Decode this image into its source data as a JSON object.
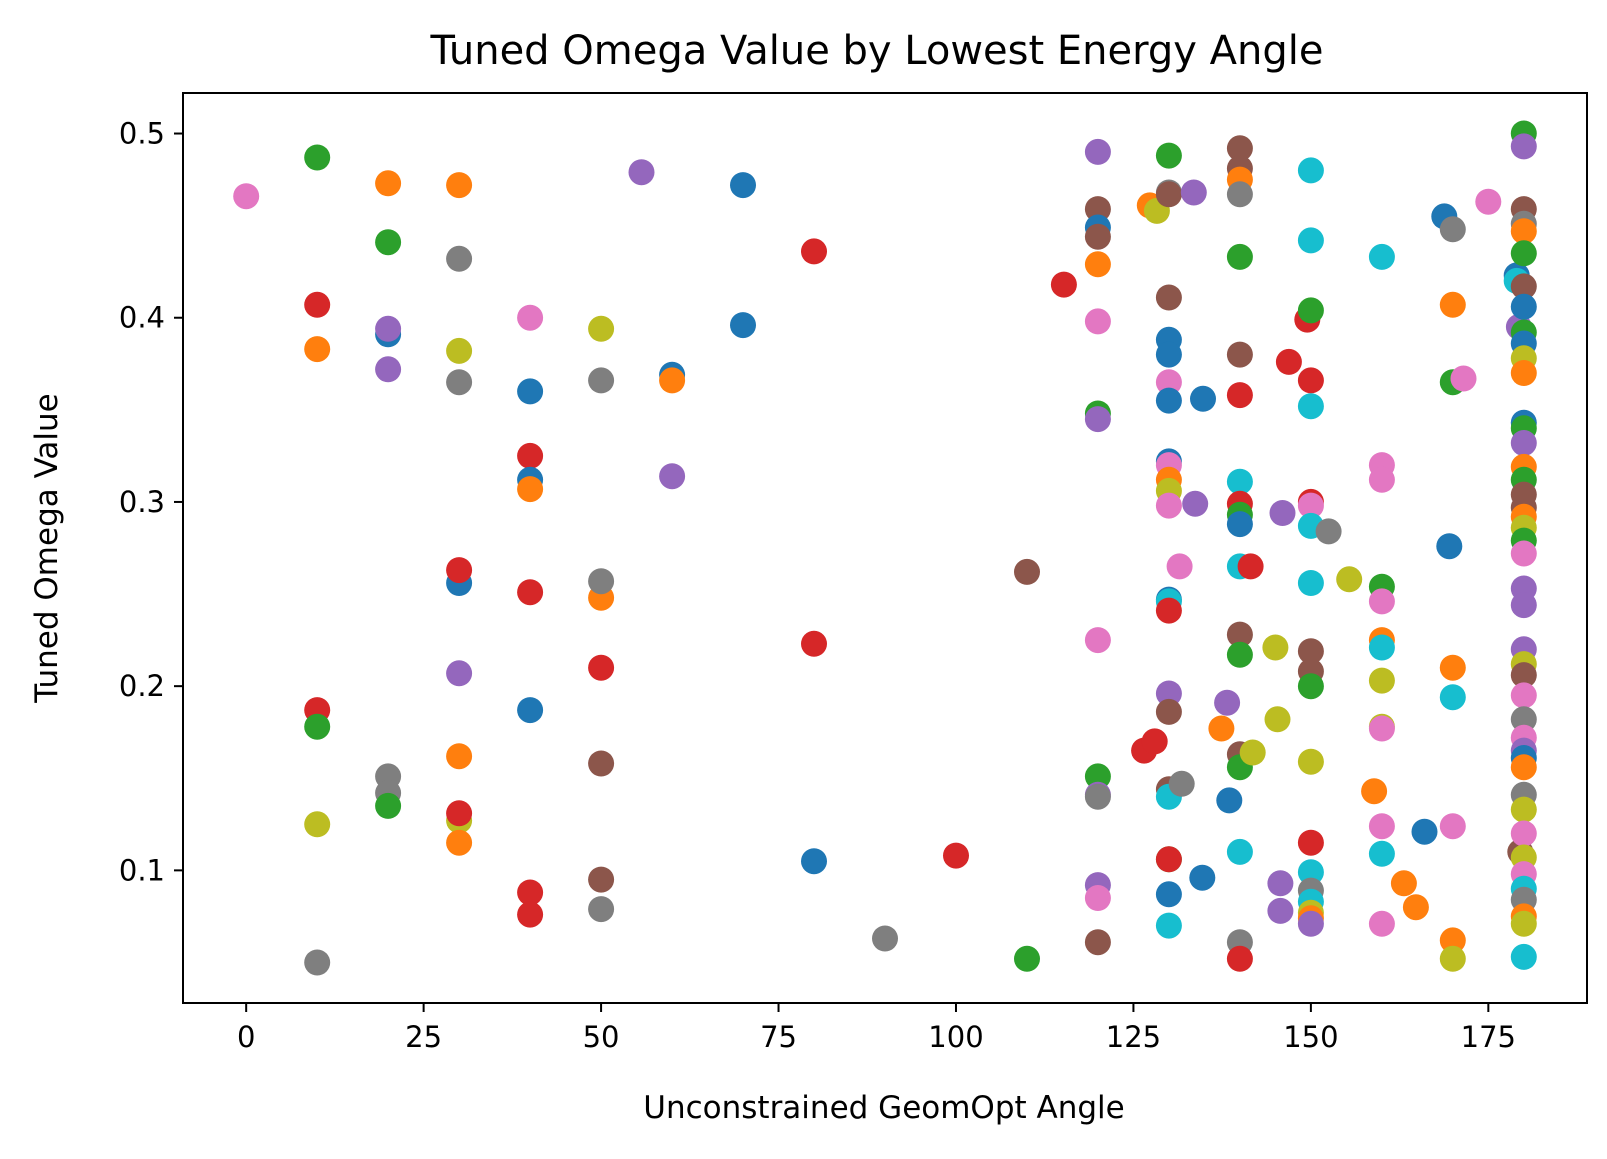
{
  "chart_data": {
    "type": "scatter",
    "title": "Tuned Omega Value by Lowest Energy Angle",
    "xlabel": "Unconstrained GeomOpt Angle",
    "ylabel": "Tuned Omega Value",
    "xlim": [
      -8.9,
      188.9
    ],
    "ylim": [
      0.028,
      0.522
    ],
    "xticks": [
      0,
      25,
      50,
      75,
      100,
      125,
      150,
      175
    ],
    "yticks": [
      0.1,
      0.2,
      0.3,
      0.4,
      0.5
    ],
    "xtick_labels": [
      "0",
      "25",
      "50",
      "75",
      "100",
      "125",
      "150",
      "175"
    ],
    "ytick_labels": [
      "0.1",
      "0.2",
      "0.3",
      "0.4",
      "0.5"
    ],
    "grid": false,
    "legend": "none",
    "colors": {
      "blue": "#1f77b4",
      "orange": "#ff7f0e",
      "green": "#2ca02c",
      "red": "#d62728",
      "purple": "#9467bd",
      "brown": "#8c564b",
      "pink": "#e377c2",
      "gray": "#7f7f7f",
      "olive": "#bcbd22",
      "cyan": "#17becf"
    },
    "points": [
      {
        "x": 0,
        "y": 0.466,
        "c": "pink"
      },
      {
        "x": 10,
        "y": 0.487,
        "c": "green"
      },
      {
        "x": 10,
        "y": 0.407,
        "c": "red"
      },
      {
        "x": 10,
        "y": 0.383,
        "c": "orange"
      },
      {
        "x": 10,
        "y": 0.187,
        "c": "red"
      },
      {
        "x": 10,
        "y": 0.178,
        "c": "green"
      },
      {
        "x": 10,
        "y": 0.125,
        "c": "olive"
      },
      {
        "x": 10,
        "y": 0.05,
        "c": "gray"
      },
      {
        "x": 20,
        "y": 0.473,
        "c": "orange"
      },
      {
        "x": 20,
        "y": 0.441,
        "c": "green"
      },
      {
        "x": 20,
        "y": 0.391,
        "c": "blue"
      },
      {
        "x": 20,
        "y": 0.394,
        "c": "purple"
      },
      {
        "x": 20,
        "y": 0.372,
        "c": "purple"
      },
      {
        "x": 20,
        "y": 0.151,
        "c": "gray"
      },
      {
        "x": 20,
        "y": 0.142,
        "c": "gray"
      },
      {
        "x": 20,
        "y": 0.135,
        "c": "green"
      },
      {
        "x": 30,
        "y": 0.472,
        "c": "orange"
      },
      {
        "x": 30,
        "y": 0.432,
        "c": "gray"
      },
      {
        "x": 30,
        "y": 0.382,
        "c": "olive"
      },
      {
        "x": 30,
        "y": 0.365,
        "c": "gray"
      },
      {
        "x": 30,
        "y": 0.256,
        "c": "blue"
      },
      {
        "x": 30,
        "y": 0.263,
        "c": "red"
      },
      {
        "x": 30,
        "y": 0.207,
        "c": "purple"
      },
      {
        "x": 30,
        "y": 0.162,
        "c": "orange"
      },
      {
        "x": 30,
        "y": 0.127,
        "c": "olive"
      },
      {
        "x": 30,
        "y": 0.131,
        "c": "red"
      },
      {
        "x": 30,
        "y": 0.115,
        "c": "orange"
      },
      {
        "x": 40,
        "y": 0.4,
        "c": "pink"
      },
      {
        "x": 40,
        "y": 0.36,
        "c": "blue"
      },
      {
        "x": 40,
        "y": 0.325,
        "c": "red"
      },
      {
        "x": 40,
        "y": 0.312,
        "c": "blue"
      },
      {
        "x": 40,
        "y": 0.307,
        "c": "orange"
      },
      {
        "x": 40,
        "y": 0.251,
        "c": "red"
      },
      {
        "x": 40,
        "y": 0.187,
        "c": "blue"
      },
      {
        "x": 40,
        "y": 0.088,
        "c": "red"
      },
      {
        "x": 40,
        "y": 0.076,
        "c": "red"
      },
      {
        "x": 50,
        "y": 0.394,
        "c": "olive"
      },
      {
        "x": 50,
        "y": 0.366,
        "c": "gray"
      },
      {
        "x": 50,
        "y": 0.248,
        "c": "orange"
      },
      {
        "x": 50,
        "y": 0.257,
        "c": "gray"
      },
      {
        "x": 50,
        "y": 0.21,
        "c": "red"
      },
      {
        "x": 50,
        "y": 0.158,
        "c": "brown"
      },
      {
        "x": 50,
        "y": 0.095,
        "c": "brown"
      },
      {
        "x": 50,
        "y": 0.079,
        "c": "gray"
      },
      {
        "x": 55.7,
        "y": 0.479,
        "c": "purple"
      },
      {
        "x": 60,
        "y": 0.369,
        "c": "blue"
      },
      {
        "x": 60,
        "y": 0.366,
        "c": "orange"
      },
      {
        "x": 60,
        "y": 0.314,
        "c": "purple"
      },
      {
        "x": 70,
        "y": 0.472,
        "c": "blue"
      },
      {
        "x": 70,
        "y": 0.396,
        "c": "blue"
      },
      {
        "x": 80,
        "y": 0.436,
        "c": "red"
      },
      {
        "x": 80,
        "y": 0.223,
        "c": "red"
      },
      {
        "x": 80,
        "y": 0.105,
        "c": "blue"
      },
      {
        "x": 90,
        "y": 0.063,
        "c": "gray"
      },
      {
        "x": 100,
        "y": 0.108,
        "c": "red"
      },
      {
        "x": 110,
        "y": 0.262,
        "c": "brown"
      },
      {
        "x": 110,
        "y": 0.052,
        "c": "green"
      },
      {
        "x": 115.2,
        "y": 0.418,
        "c": "red"
      },
      {
        "x": 120,
        "y": 0.49,
        "c": "purple"
      },
      {
        "x": 120,
        "y": 0.459,
        "c": "brown"
      },
      {
        "x": 120,
        "y": 0.449,
        "c": "blue"
      },
      {
        "x": 120,
        "y": 0.444,
        "c": "brown"
      },
      {
        "x": 120,
        "y": 0.429,
        "c": "orange"
      },
      {
        "x": 120,
        "y": 0.398,
        "c": "pink"
      },
      {
        "x": 120,
        "y": 0.348,
        "c": "green"
      },
      {
        "x": 120,
        "y": 0.345,
        "c": "purple"
      },
      {
        "x": 120,
        "y": 0.225,
        "c": "pink"
      },
      {
        "x": 120,
        "y": 0.151,
        "c": "green"
      },
      {
        "x": 120,
        "y": 0.141,
        "c": "purple"
      },
      {
        "x": 120,
        "y": 0.14,
        "c": "gray"
      },
      {
        "x": 120,
        "y": 0.092,
        "c": "purple"
      },
      {
        "x": 120,
        "y": 0.085,
        "c": "pink"
      },
      {
        "x": 120,
        "y": 0.061,
        "c": "brown"
      },
      {
        "x": 126.5,
        "y": 0.165,
        "c": "red"
      },
      {
        "x": 127.3,
        "y": 0.461,
        "c": "orange"
      },
      {
        "x": 128,
        "y": 0.17,
        "c": "red"
      },
      {
        "x": 128.3,
        "y": 0.458,
        "c": "olive"
      },
      {
        "x": 130,
        "y": 0.488,
        "c": "green"
      },
      {
        "x": 130,
        "y": 0.468,
        "c": "gray"
      },
      {
        "x": 130,
        "y": 0.467,
        "c": "brown"
      },
      {
        "x": 130,
        "y": 0.411,
        "c": "brown"
      },
      {
        "x": 130,
        "y": 0.388,
        "c": "blue"
      },
      {
        "x": 130,
        "y": 0.38,
        "c": "blue"
      },
      {
        "x": 130,
        "y": 0.365,
        "c": "pink"
      },
      {
        "x": 130,
        "y": 0.355,
        "c": "blue"
      },
      {
        "x": 130,
        "y": 0.322,
        "c": "blue"
      },
      {
        "x": 130,
        "y": 0.32,
        "c": "pink"
      },
      {
        "x": 130,
        "y": 0.312,
        "c": "orange"
      },
      {
        "x": 130,
        "y": 0.306,
        "c": "olive"
      },
      {
        "x": 130,
        "y": 0.298,
        "c": "pink"
      },
      {
        "x": 130,
        "y": 0.247,
        "c": "blue"
      },
      {
        "x": 130,
        "y": 0.246,
        "c": "cyan"
      },
      {
        "x": 130,
        "y": 0.241,
        "c": "red"
      },
      {
        "x": 130,
        "y": 0.196,
        "c": "purple"
      },
      {
        "x": 130,
        "y": 0.186,
        "c": "brown"
      },
      {
        "x": 130,
        "y": 0.144,
        "c": "brown"
      },
      {
        "x": 130,
        "y": 0.14,
        "c": "cyan"
      },
      {
        "x": 130,
        "y": 0.106,
        "c": "green"
      },
      {
        "x": 130,
        "y": 0.106,
        "c": "red"
      },
      {
        "x": 130,
        "y": 0.087,
        "c": "blue"
      },
      {
        "x": 130,
        "y": 0.07,
        "c": "cyan"
      },
      {
        "x": 131.5,
        "y": 0.265,
        "c": "pink"
      },
      {
        "x": 131.8,
        "y": 0.147,
        "c": "gray"
      },
      {
        "x": 133.5,
        "y": 0.468,
        "c": "purple"
      },
      {
        "x": 133.7,
        "y": 0.299,
        "c": "purple"
      },
      {
        "x": 134.8,
        "y": 0.356,
        "c": "blue"
      },
      {
        "x": 134.7,
        "y": 0.096,
        "c": "blue"
      },
      {
        "x": 137.4,
        "y": 0.177,
        "c": "orange"
      },
      {
        "x": 138.2,
        "y": 0.191,
        "c": "purple"
      },
      {
        "x": 138.5,
        "y": 0.138,
        "c": "blue"
      },
      {
        "x": 140,
        "y": 0.492,
        "c": "brown"
      },
      {
        "x": 140,
        "y": 0.481,
        "c": "brown"
      },
      {
        "x": 140,
        "y": 0.475,
        "c": "orange"
      },
      {
        "x": 140,
        "y": 0.467,
        "c": "gray"
      },
      {
        "x": 140,
        "y": 0.433,
        "c": "green"
      },
      {
        "x": 140,
        "y": 0.38,
        "c": "brown"
      },
      {
        "x": 140,
        "y": 0.358,
        "c": "red"
      },
      {
        "x": 140,
        "y": 0.311,
        "c": "cyan"
      },
      {
        "x": 140,
        "y": 0.299,
        "c": "red"
      },
      {
        "x": 140,
        "y": 0.293,
        "c": "green"
      },
      {
        "x": 140,
        "y": 0.288,
        "c": "blue"
      },
      {
        "x": 140,
        "y": 0.265,
        "c": "cyan"
      },
      {
        "x": 140,
        "y": 0.228,
        "c": "brown"
      },
      {
        "x": 140,
        "y": 0.217,
        "c": "green"
      },
      {
        "x": 140,
        "y": 0.163,
        "c": "brown"
      },
      {
        "x": 140,
        "y": 0.156,
        "c": "green"
      },
      {
        "x": 140,
        "y": 0.11,
        "c": "cyan"
      },
      {
        "x": 140,
        "y": 0.061,
        "c": "gray"
      },
      {
        "x": 140,
        "y": 0.052,
        "c": "red"
      },
      {
        "x": 141.5,
        "y": 0.265,
        "c": "red"
      },
      {
        "x": 141.8,
        "y": 0.164,
        "c": "olive"
      },
      {
        "x": 145,
        "y": 0.221,
        "c": "olive"
      },
      {
        "x": 145.3,
        "y": 0.182,
        "c": "olive"
      },
      {
        "x": 146,
        "y": 0.294,
        "c": "purple"
      },
      {
        "x": 145.7,
        "y": 0.093,
        "c": "purple"
      },
      {
        "x": 145.7,
        "y": 0.078,
        "c": "purple"
      },
      {
        "x": 146.9,
        "y": 0.376,
        "c": "red"
      },
      {
        "x": 149.5,
        "y": 0.399,
        "c": "red"
      },
      {
        "x": 150,
        "y": 0.48,
        "c": "cyan"
      },
      {
        "x": 150,
        "y": 0.442,
        "c": "cyan"
      },
      {
        "x": 150,
        "y": 0.404,
        "c": "green"
      },
      {
        "x": 150,
        "y": 0.366,
        "c": "red"
      },
      {
        "x": 150,
        "y": 0.352,
        "c": "cyan"
      },
      {
        "x": 150,
        "y": 0.3,
        "c": "red"
      },
      {
        "x": 150,
        "y": 0.298,
        "c": "pink"
      },
      {
        "x": 150,
        "y": 0.287,
        "c": "cyan"
      },
      {
        "x": 150,
        "y": 0.256,
        "c": "cyan"
      },
      {
        "x": 150,
        "y": 0.219,
        "c": "brown"
      },
      {
        "x": 150,
        "y": 0.208,
        "c": "brown"
      },
      {
        "x": 150,
        "y": 0.2,
        "c": "green"
      },
      {
        "x": 150,
        "y": 0.159,
        "c": "olive"
      },
      {
        "x": 150,
        "y": 0.115,
        "c": "red"
      },
      {
        "x": 150,
        "y": 0.099,
        "c": "cyan"
      },
      {
        "x": 150,
        "y": 0.089,
        "c": "gray"
      },
      {
        "x": 150,
        "y": 0.083,
        "c": "cyan"
      },
      {
        "x": 150,
        "y": 0.077,
        "c": "olive"
      },
      {
        "x": 150,
        "y": 0.074,
        "c": "orange"
      },
      {
        "x": 150,
        "y": 0.071,
        "c": "purple"
      },
      {
        "x": 152.5,
        "y": 0.284,
        "c": "gray"
      },
      {
        "x": 155.4,
        "y": 0.258,
        "c": "olive"
      },
      {
        "x": 158.9,
        "y": 0.143,
        "c": "orange"
      },
      {
        "x": 160,
        "y": 0.433,
        "c": "cyan"
      },
      {
        "x": 160,
        "y": 0.32,
        "c": "pink"
      },
      {
        "x": 160,
        "y": 0.312,
        "c": "pink"
      },
      {
        "x": 160,
        "y": 0.254,
        "c": "green"
      },
      {
        "x": 160,
        "y": 0.246,
        "c": "pink"
      },
      {
        "x": 160,
        "y": 0.225,
        "c": "orange"
      },
      {
        "x": 160,
        "y": 0.221,
        "c": "cyan"
      },
      {
        "x": 160,
        "y": 0.203,
        "c": "olive"
      },
      {
        "x": 160,
        "y": 0.178,
        "c": "olive"
      },
      {
        "x": 160,
        "y": 0.177,
        "c": "pink"
      },
      {
        "x": 160,
        "y": 0.124,
        "c": "pink"
      },
      {
        "x": 160,
        "y": 0.109,
        "c": "cyan"
      },
      {
        "x": 160,
        "y": 0.071,
        "c": "pink"
      },
      {
        "x": 163.1,
        "y": 0.093,
        "c": "orange"
      },
      {
        "x": 164.8,
        "y": 0.08,
        "c": "orange"
      },
      {
        "x": 166,
        "y": 0.121,
        "c": "blue"
      },
      {
        "x": 168.8,
        "y": 0.455,
        "c": "blue"
      },
      {
        "x": 169.5,
        "y": 0.276,
        "c": "blue"
      },
      {
        "x": 170,
        "y": 0.448,
        "c": "gray"
      },
      {
        "x": 170,
        "y": 0.407,
        "c": "orange"
      },
      {
        "x": 170,
        "y": 0.365,
        "c": "green"
      },
      {
        "x": 170,
        "y": 0.21,
        "c": "orange"
      },
      {
        "x": 170,
        "y": 0.194,
        "c": "cyan"
      },
      {
        "x": 170,
        "y": 0.124,
        "c": "pink"
      },
      {
        "x": 170,
        "y": 0.062,
        "c": "orange"
      },
      {
        "x": 170,
        "y": 0.052,
        "c": "olive"
      },
      {
        "x": 171.5,
        "y": 0.367,
        "c": "pink"
      },
      {
        "x": 175,
        "y": 0.463,
        "c": "pink"
      },
      {
        "x": 179,
        "y": 0.423,
        "c": "blue"
      },
      {
        "x": 179,
        "y": 0.42,
        "c": "cyan"
      },
      {
        "x": 179.3,
        "y": 0.395,
        "c": "purple"
      },
      {
        "x": 179.5,
        "y": 0.11,
        "c": "brown"
      },
      {
        "x": 180,
        "y": 0.5,
        "c": "green"
      },
      {
        "x": 180,
        "y": 0.493,
        "c": "purple"
      },
      {
        "x": 180,
        "y": 0.459,
        "c": "brown"
      },
      {
        "x": 180,
        "y": 0.451,
        "c": "gray"
      },
      {
        "x": 180,
        "y": 0.447,
        "c": "orange"
      },
      {
        "x": 180,
        "y": 0.435,
        "c": "green"
      },
      {
        "x": 180,
        "y": 0.417,
        "c": "brown"
      },
      {
        "x": 180,
        "y": 0.406,
        "c": "blue"
      },
      {
        "x": 180,
        "y": 0.392,
        "c": "green"
      },
      {
        "x": 180,
        "y": 0.386,
        "c": "blue"
      },
      {
        "x": 180,
        "y": 0.378,
        "c": "olive"
      },
      {
        "x": 180,
        "y": 0.37,
        "c": "orange"
      },
      {
        "x": 180,
        "y": 0.343,
        "c": "blue"
      },
      {
        "x": 180,
        "y": 0.34,
        "c": "green"
      },
      {
        "x": 180,
        "y": 0.332,
        "c": "purple"
      },
      {
        "x": 180,
        "y": 0.319,
        "c": "orange"
      },
      {
        "x": 180,
        "y": 0.312,
        "c": "green"
      },
      {
        "x": 180,
        "y": 0.304,
        "c": "brown"
      },
      {
        "x": 180,
        "y": 0.297,
        "c": "brown"
      },
      {
        "x": 180,
        "y": 0.292,
        "c": "orange"
      },
      {
        "x": 180,
        "y": 0.286,
        "c": "olive"
      },
      {
        "x": 180,
        "y": 0.279,
        "c": "green"
      },
      {
        "x": 180,
        "y": 0.272,
        "c": "pink"
      },
      {
        "x": 180,
        "y": 0.253,
        "c": "purple"
      },
      {
        "x": 180,
        "y": 0.244,
        "c": "purple"
      },
      {
        "x": 180,
        "y": 0.22,
        "c": "purple"
      },
      {
        "x": 180,
        "y": 0.212,
        "c": "olive"
      },
      {
        "x": 180,
        "y": 0.206,
        "c": "brown"
      },
      {
        "x": 180,
        "y": 0.195,
        "c": "pink"
      },
      {
        "x": 180,
        "y": 0.182,
        "c": "gray"
      },
      {
        "x": 180,
        "y": 0.172,
        "c": "pink"
      },
      {
        "x": 180,
        "y": 0.165,
        "c": "purple"
      },
      {
        "x": 180,
        "y": 0.161,
        "c": "blue"
      },
      {
        "x": 180,
        "y": 0.156,
        "c": "orange"
      },
      {
        "x": 180,
        "y": 0.141,
        "c": "gray"
      },
      {
        "x": 180,
        "y": 0.133,
        "c": "olive"
      },
      {
        "x": 180,
        "y": 0.12,
        "c": "pink"
      },
      {
        "x": 180,
        "y": 0.107,
        "c": "olive"
      },
      {
        "x": 180,
        "y": 0.098,
        "c": "pink"
      },
      {
        "x": 180,
        "y": 0.09,
        "c": "cyan"
      },
      {
        "x": 180,
        "y": 0.084,
        "c": "gray"
      },
      {
        "x": 180,
        "y": 0.075,
        "c": "orange"
      },
      {
        "x": 180,
        "y": 0.071,
        "c": "olive"
      },
      {
        "x": 180,
        "y": 0.053,
        "c": "cyan"
      }
    ]
  }
}
